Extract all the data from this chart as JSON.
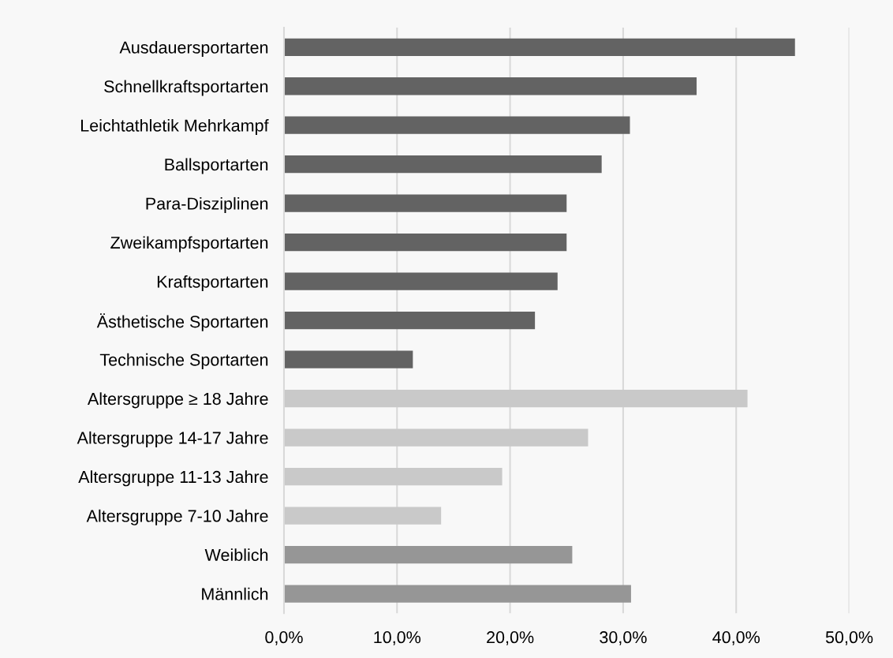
{
  "chart_data": {
    "type": "bar",
    "orientation": "horizontal",
    "categories": [
      "Ausdauersportarten",
      "Schnellkraftsportarten",
      "Leichtathletik Mehrkampf",
      "Ballsportarten",
      "Para-Disziplinen",
      "Zweikampfsportarten",
      "Kraftsportarten",
      "Ästhetische Sportarten",
      "Technische Sportarten",
      "Altersgruppe ≥ 18 Jahre",
      "Altersgruppe 14-17 Jahre",
      "Altersgruppe 11-13 Jahre",
      "Altersgruppe 7-10 Jahre",
      "Weiblich",
      "Männlich"
    ],
    "values": [
      45.2,
      36.5,
      30.6,
      28.1,
      25.0,
      25.0,
      24.2,
      22.2,
      11.4,
      41.0,
      26.9,
      19.3,
      13.9,
      25.5,
      30.7
    ],
    "colors": [
      "#636363",
      "#636363",
      "#636363",
      "#636363",
      "#636363",
      "#636363",
      "#636363",
      "#636363",
      "#636363",
      "#c9c9c9",
      "#c9c9c9",
      "#c9c9c9",
      "#c9c9c9",
      "#969696",
      "#969696"
    ],
    "xlim": [
      0,
      50
    ],
    "xticks": [
      {
        "value": 0,
        "label": "0,0%"
      },
      {
        "value": 10,
        "label": "10,0%"
      },
      {
        "value": 20,
        "label": "20,0%"
      },
      {
        "value": 30,
        "label": "30,0%"
      },
      {
        "value": 40,
        "label": "40,0%"
      },
      {
        "value": 50,
        "label": "50,0%"
      }
    ],
    "grid": "x",
    "legend": false
  }
}
